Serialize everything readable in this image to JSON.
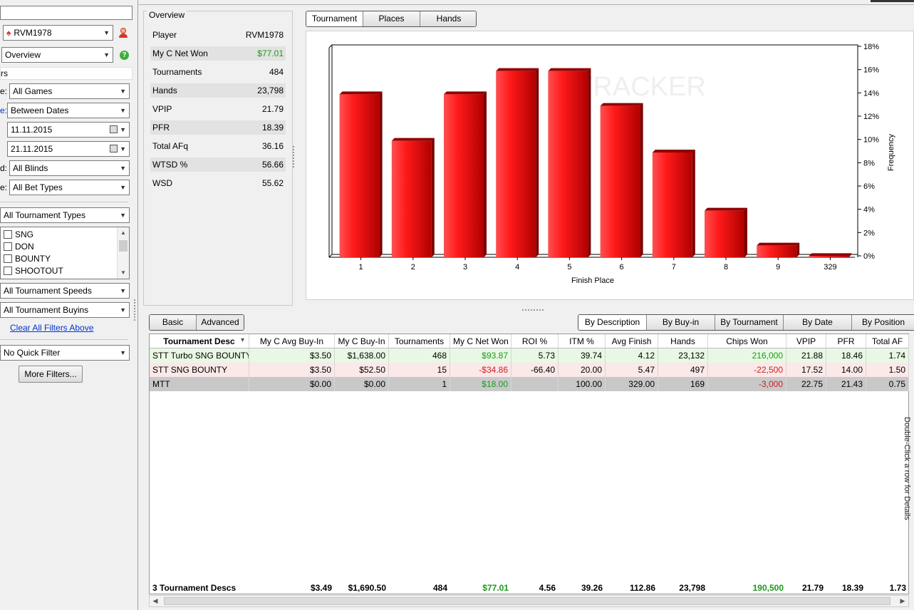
{
  "left": {
    "player": "RVM1978",
    "report": "Overview",
    "filters_header": "rs",
    "filters": [
      {
        "label": "e:",
        "value": "All Games",
        "blue": false
      },
      {
        "label": "e:",
        "value": "Between Dates",
        "blue": true
      },
      {
        "label": "d:",
        "value": "All Blinds",
        "blue": false
      },
      {
        "label": "e:",
        "value": "All Bet Types",
        "blue": false
      }
    ],
    "date_from": "11.11.2015",
    "date_to": "21.11.2015",
    "tournament_types": "All Tournament Types",
    "type_list": [
      "SNG",
      "DON",
      "BOUNTY",
      "SHOOTOUT"
    ],
    "speeds": "All Tournament Speeds",
    "buyins": "All Tournament Buyins",
    "clear_link": "Clear All Filters Above",
    "quick_filter": "No Quick Filter",
    "more_filters": "More Filters..."
  },
  "overview": {
    "title": "Overview",
    "rows": [
      {
        "label": "Player",
        "value": "RVM1978",
        "color": ""
      },
      {
        "label": "My C Net Won",
        "value": "$77.01",
        "color": "green"
      },
      {
        "label": "Tournaments",
        "value": "484",
        "color": ""
      },
      {
        "label": "Hands",
        "value": "23,798",
        "color": ""
      },
      {
        "label": "VPIP",
        "value": "21.79",
        "color": ""
      },
      {
        "label": "PFR",
        "value": "18.39",
        "color": ""
      },
      {
        "label": "Total AFq",
        "value": "36.16",
        "color": ""
      },
      {
        "label": "WTSD %",
        "value": "56.66",
        "color": ""
      },
      {
        "label": "WSD",
        "value": "55.62",
        "color": ""
      }
    ]
  },
  "top_tabs": [
    "Tournament",
    "Places",
    "Hands"
  ],
  "view_tabs": [
    "Basic",
    "Advanced"
  ],
  "group_tabs": [
    "By Description",
    "By Buy-in",
    "By Tournament",
    "By Date",
    "By Position"
  ],
  "chart_data": {
    "type": "bar",
    "categories": [
      "1",
      "2",
      "3",
      "4",
      "5",
      "6",
      "7",
      "8",
      "9",
      "329"
    ],
    "values": [
      14,
      10,
      14,
      16,
      16,
      13,
      9,
      4,
      1,
      0.1
    ],
    "xlabel": "Finish Place",
    "ylabel": "Frequency",
    "ylim": [
      0,
      18
    ],
    "yticks": [
      "0%",
      "2%",
      "4%",
      "6%",
      "8%",
      "10%",
      "12%",
      "14%",
      "16%",
      "18%"
    ],
    "watermark": "TRACKER",
    "bar_color": "#e00000"
  },
  "grid": {
    "columns": [
      "Tournament Desc",
      "My C Avg Buy-In",
      "My C Buy-In",
      "Tournaments",
      "My C Net Won",
      "ROI %",
      "ITM %",
      "Avg Finish",
      "Hands",
      "Chips Won",
      "VPIP",
      "PFR",
      "Total AF"
    ],
    "rows": [
      {
        "cells": [
          "STT Turbo SNG BOUNTY",
          "$3.50",
          "$1,638.00",
          "468",
          "$93.87",
          "5.73",
          "39.74",
          "4.12",
          "23,132",
          "216,000",
          "21.88",
          "18.46",
          "1.74"
        ],
        "bg": "#e8f8e4",
        "net": "green",
        "chips": "green"
      },
      {
        "cells": [
          "STT SNG BOUNTY",
          "$3.50",
          "$52.50",
          "15",
          "-$34.86",
          "-66.40",
          "20.00",
          "5.47",
          "497",
          "-22,500",
          "17.52",
          "14.00",
          "1.50"
        ],
        "bg": "#fbe8e8",
        "net": "red",
        "chips": "red"
      },
      {
        "cells": [
          "MTT",
          "$0.00",
          "$0.00",
          "1",
          "$18.00",
          "",
          "100.00",
          "329.00",
          "169",
          "-3,000",
          "22.75",
          "21.43",
          "0.75"
        ],
        "bg": "#c8c8c8",
        "net": "green",
        "chips": "red"
      }
    ],
    "total": [
      "3 Tournament Descs",
      "$3.49",
      "$1,690.50",
      "484",
      "$77.01",
      "4.56",
      "39.26",
      "112.86",
      "23,798",
      "190,500",
      "21.79",
      "18.39",
      "1.73"
    ],
    "side_note": "Double-Click a row for Details"
  }
}
